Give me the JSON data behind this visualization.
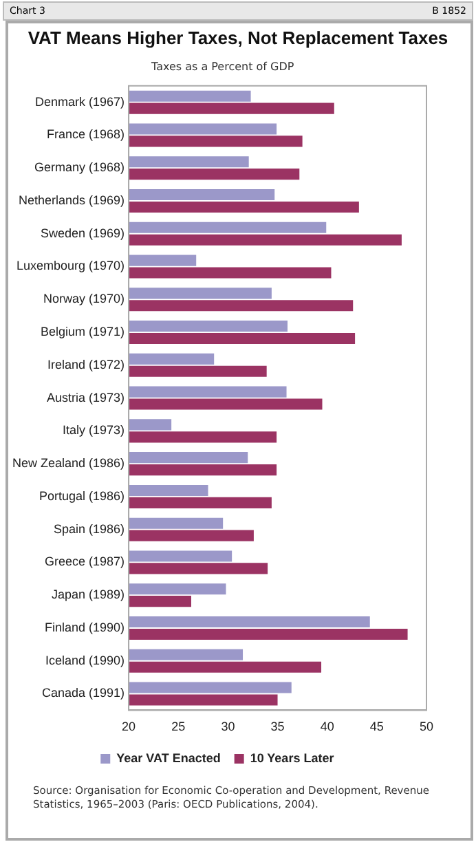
{
  "chart_data": {
    "type": "bar",
    "orientation": "horizontal",
    "title": "VAT Means Higher Taxes, Not Replacement Taxes",
    "xlabel": "Taxes as a Percent of GDP",
    "categories": [
      "Denmark (1967)",
      "France (1968)",
      "Germany (1968)",
      "Netherlands (1969)",
      "Sweden (1969)",
      "Luxembourg (1970)",
      "Norway (1970)",
      "Belgium (1971)",
      "Ireland (1972)",
      "Austria (1973)",
      "Italy (1973)",
      "New Zealand (1986)",
      "Portugal (1986)",
      "Spain (1986)",
      "Greece (1987)",
      "Japan (1989)",
      "Finland (1990)",
      "Iceland (1990)",
      "Canada (1991)"
    ],
    "series": [
      {
        "name": "Year VAT Enacted",
        "color": "#9b98c9",
        "values": [
          32.3,
          34.9,
          32.1,
          34.7,
          39.9,
          26.8,
          34.4,
          36.0,
          28.6,
          35.9,
          24.3,
          32.0,
          28.0,
          29.5,
          30.4,
          29.8,
          44.3,
          31.5,
          36.4
        ]
      },
      {
        "name": "10 Years Later",
        "color": "#9b3363",
        "values": [
          40.7,
          37.5,
          37.2,
          43.2,
          47.5,
          40.4,
          42.6,
          42.8,
          33.9,
          39.5,
          34.9,
          34.9,
          34.4,
          32.6,
          34.0,
          26.3,
          48.1,
          39.4,
          35.0
        ]
      }
    ],
    "xlim": [
      20,
      50
    ],
    "xticks": [
      20,
      25,
      30,
      35,
      40,
      45,
      50
    ],
    "grid": false,
    "legend": "bottom",
    "annotations": [
      "Chart 3",
      "B 1852",
      "Source: Organisation for Economic Co-operation and Development, Revenue Statistics, 1965–2003 (Paris: OECD Publications, 2004)."
    ]
  }
}
